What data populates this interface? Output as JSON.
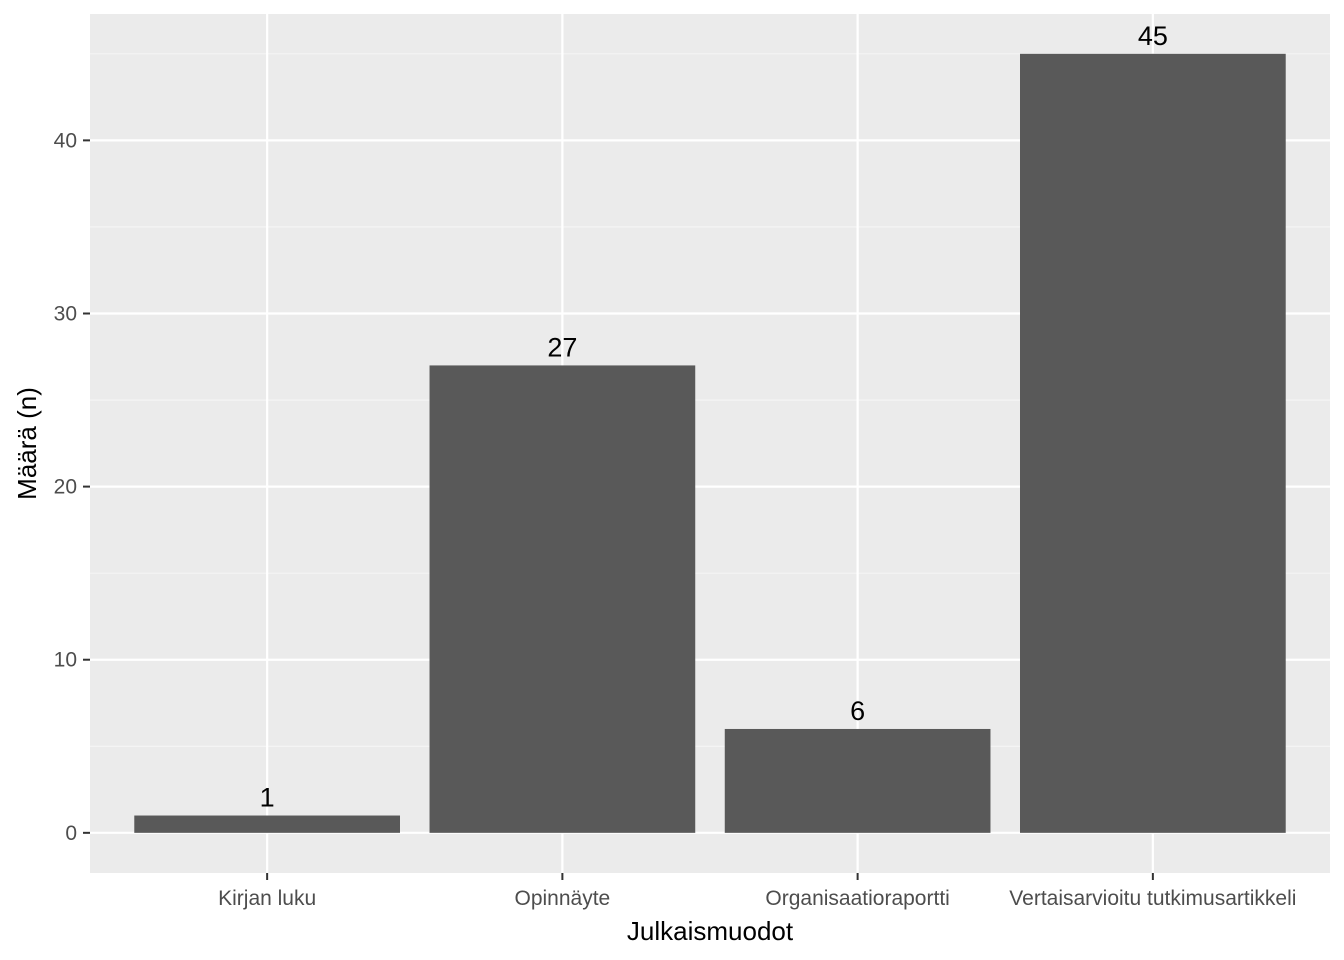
{
  "chart_data": {
    "type": "bar",
    "categories": [
      "Kirjan luku",
      "Opinnäyte",
      "Organisaatioraportti",
      "Vertaisarvioitu tutkimusartikkeli"
    ],
    "values": [
      1,
      27,
      6,
      45
    ],
    "data_labels": [
      "1",
      "27",
      "6",
      "45"
    ],
    "title": "",
    "xlabel": "Julkaismuodot",
    "ylabel": "Määrä (n)",
    "ylim": [
      -2.32,
      47.3
    ],
    "y_ticks": [
      0,
      10,
      20,
      30,
      40
    ],
    "y_tick_labels": [
      "0",
      "10",
      "20",
      "30",
      "40"
    ],
    "grid": true,
    "legend": "none",
    "colors": {
      "bar": "#595959",
      "panel": "#ebebeb",
      "grid_major": "#ffffff",
      "grid_minor": "#f5f5f5",
      "tick": "#333333"
    }
  }
}
